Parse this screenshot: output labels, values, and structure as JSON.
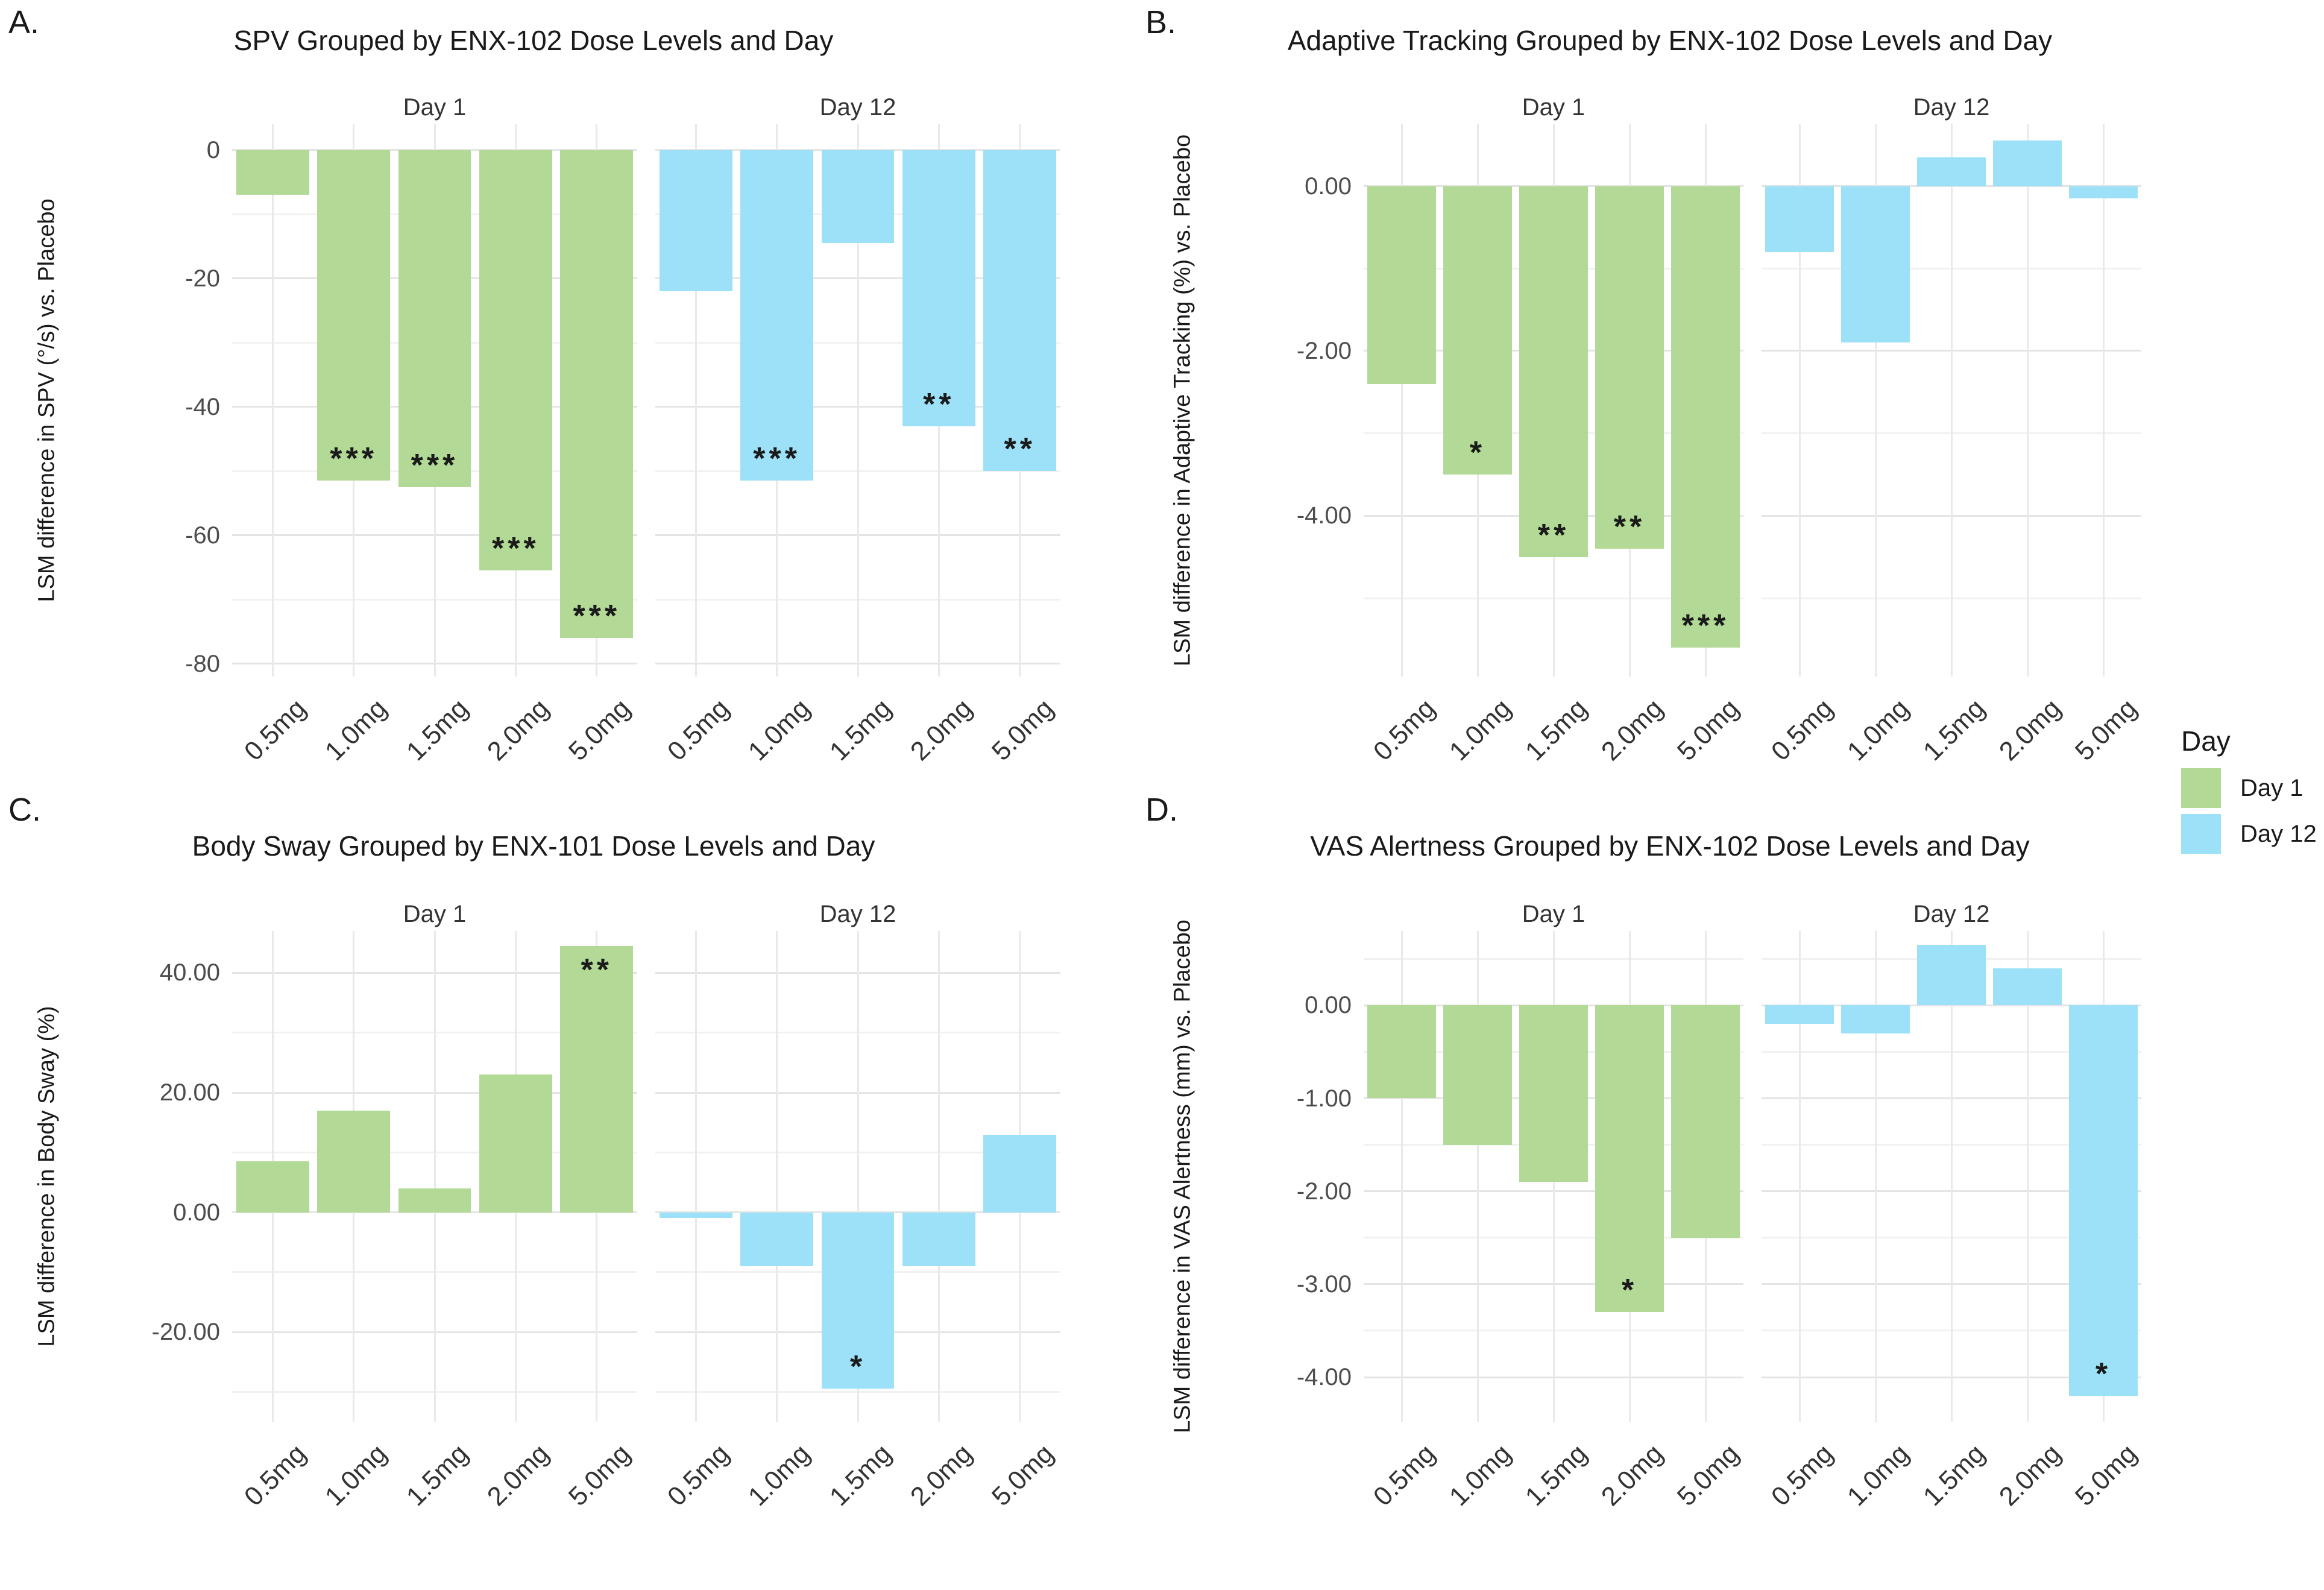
{
  "figure_background": "#ffffff",
  "colors": {
    "day1": "#b2d995",
    "day12": "#9ce1f7",
    "grid_major": "#e4e4e4",
    "grid_minor": "#f1f1f1",
    "tick_text": "#4d4d4d",
    "title_text": "#1a1a1a"
  },
  "legend": {
    "title": "Day",
    "items": [
      {
        "label": "Day 1",
        "color": "#b2d995"
      },
      {
        "label": "Day 12",
        "color": "#9ce1f7"
      }
    ]
  },
  "chart_data": [
    {
      "panel": "A",
      "letter": "A.",
      "type": "bar",
      "title": "SPV Grouped by ENX-102 Dose Levels and Day",
      "ylabel": "LSM difference in SPV (°/s) vs. Placebo",
      "categories": [
        "0.5mg",
        "1.0mg",
        "1.5mg",
        "2.0mg",
        "5.0mg"
      ],
      "ylim": [
        4,
        -82
      ],
      "major_step": 20,
      "minor_step": 10,
      "yticks": [
        {
          "v": 0,
          "label": "0"
        },
        {
          "v": -20,
          "label": "-20"
        },
        {
          "v": -40,
          "label": "-40"
        },
        {
          "v": -60,
          "label": "-60"
        },
        {
          "v": -80,
          "label": "-80"
        }
      ],
      "facets": [
        {
          "label": "Day 1",
          "series": "Day 1",
          "color_key": "day1",
          "values": [
            -7,
            -51.5,
            -52.5,
            -65.5,
            -76
          ],
          "stars": [
            "",
            "***",
            "***",
            "***",
            "***"
          ]
        },
        {
          "label": "Day 12",
          "series": "Day 12",
          "color_key": "day12",
          "values": [
            -22,
            -51.5,
            -14.5,
            -43,
            -50
          ],
          "stars": [
            "",
            "***",
            "",
            "**",
            "**"
          ]
        }
      ]
    },
    {
      "panel": "B",
      "letter": "B.",
      "type": "bar",
      "title": "Adaptive Tracking Grouped by ENX-102 Dose Levels and Day",
      "ylabel": "LSM difference in Adaptive Tracking (%) vs. Placebo",
      "categories": [
        "0.5mg",
        "1.0mg",
        "1.5mg",
        "2.0mg",
        "5.0mg"
      ],
      "ylim": [
        0.75,
        -5.95
      ],
      "major_step": 2,
      "minor_step": 1,
      "yticks": [
        {
          "v": 0,
          "label": "0.00"
        },
        {
          "v": -2,
          "label": "-2.00"
        },
        {
          "v": -4,
          "label": "-4.00"
        }
      ],
      "facets": [
        {
          "label": "Day 1",
          "series": "Day 1",
          "color_key": "day1",
          "values": [
            -2.4,
            -3.5,
            -4.5,
            -4.4,
            -5.6
          ],
          "stars": [
            "",
            "*",
            "**",
            "**",
            "***"
          ]
        },
        {
          "label": "Day 12",
          "series": "Day 12",
          "color_key": "day12",
          "values": [
            -0.8,
            -1.9,
            0.35,
            0.55,
            -0.15
          ],
          "stars": [
            "",
            "",
            "",
            "",
            ""
          ]
        }
      ]
    },
    {
      "panel": "C",
      "letter": "C.",
      "type": "bar",
      "title": "Body Sway Grouped by ENX-101 Dose Levels and Day",
      "ylabel": "LSM difference in Body Sway (%)",
      "categories": [
        "0.5mg",
        "1.0mg",
        "1.5mg",
        "2.0mg",
        "5.0mg"
      ],
      "ylim": [
        47,
        -35
      ],
      "major_step": 20,
      "minor_step": 10,
      "yticks": [
        {
          "v": 40,
          "label": "40.00"
        },
        {
          "v": 20,
          "label": "20.00"
        },
        {
          "v": 0,
          "label": "0.00"
        },
        {
          "v": -20,
          "label": "-20.00"
        }
      ],
      "facets": [
        {
          "label": "Day 1",
          "series": "Day 1",
          "color_key": "day1",
          "values": [
            8.5,
            17,
            4,
            23,
            44.5
          ],
          "stars": [
            "",
            "",
            "",
            "",
            "**"
          ]
        },
        {
          "label": "Day 12",
          "series": "Day 12",
          "color_key": "day12",
          "values": [
            -1,
            -9,
            -29.5,
            -9,
            13
          ],
          "stars": [
            "",
            "",
            "*",
            "",
            ""
          ]
        }
      ]
    },
    {
      "panel": "D",
      "letter": "D.",
      "type": "bar",
      "title": "VAS Alertness Grouped by ENX-102 Dose Levels and Day",
      "ylabel": "LSM difference in VAS Alertness (mm) vs. Placebo",
      "categories": [
        "0.5mg",
        "1.0mg",
        "1.5mg",
        "2.0mg",
        "5.0mg"
      ],
      "ylim": [
        0.8,
        -4.48
      ],
      "major_step": 1,
      "minor_step": 0.5,
      "yticks": [
        {
          "v": 0,
          "label": "0.00"
        },
        {
          "v": -1,
          "label": "-1.00"
        },
        {
          "v": -2,
          "label": "-2.00"
        },
        {
          "v": -3,
          "label": "-3.00"
        },
        {
          "v": -4,
          "label": "-4.00"
        }
      ],
      "facets": [
        {
          "label": "Day 1",
          "series": "Day 1",
          "color_key": "day1",
          "values": [
            -1.0,
            -1.5,
            -1.9,
            -3.3,
            -2.5
          ],
          "stars": [
            "",
            "",
            "",
            "*",
            ""
          ]
        },
        {
          "label": "Day 12",
          "series": "Day 12",
          "color_key": "day12",
          "values": [
            -0.2,
            -0.3,
            0.65,
            0.4,
            -4.2
          ],
          "stars": [
            "",
            "",
            "",
            "",
            "*"
          ]
        }
      ]
    }
  ]
}
